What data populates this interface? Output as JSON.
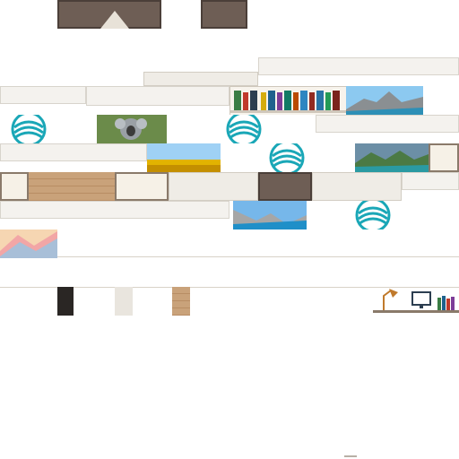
{
  "screen": {
    "background": "#ffffff",
    "accent_teal": "#1aa7b7",
    "wood": "#c9a27a",
    "door": "#6e5e55"
  },
  "icons": {
    "teal_logo": "swirl-logo-icon",
    "bookshelf": "bookshelf-icon",
    "desk_lamp": "desk-lamp-icon",
    "monitor": "monitor-icon"
  },
  "thumbnails": [
    {
      "name": "koala-photo"
    },
    {
      "name": "mountain-lake-photo"
    },
    {
      "name": "sunflower-field-photo"
    },
    {
      "name": "coastal-cliffs-photo"
    },
    {
      "name": "rocky-lake-photo"
    },
    {
      "name": "pastel-abstract-photo"
    }
  ]
}
